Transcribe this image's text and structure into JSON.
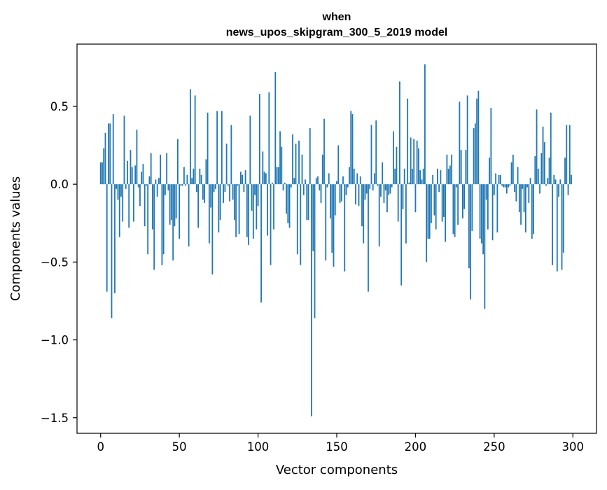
{
  "chart_data": {
    "type": "bar",
    "title_lines": [
      "when",
      "news_upos_skipgram_300_5_2019 model"
    ],
    "xlabel": "Vector components",
    "ylabel": "Components values",
    "xlim": [
      -15,
      315
    ],
    "ylim": [
      -1.6,
      0.9
    ],
    "xticks": [
      0,
      50,
      100,
      150,
      200,
      250,
      300
    ],
    "xtick_labels": [
      "0",
      "50",
      "100",
      "150",
      "200",
      "250",
      "300"
    ],
    "yticks": [
      -1.5,
      -1.0,
      -0.5,
      0.0,
      0.5
    ],
    "ytick_labels": [
      "−1.5",
      "−1.0",
      "−0.5",
      "0.0",
      "0.5"
    ],
    "grid": false,
    "bar_color": "#1f77b4",
    "x_start": 0,
    "values": [
      0.14,
      0.14,
      0.23,
      0.33,
      -0.69,
      0.39,
      0.39,
      -0.86,
      0.45,
      -0.7,
      -0.03,
      -0.1,
      -0.34,
      -0.08,
      -0.24,
      0.44,
      -0.03,
      0.15,
      -0.28,
      0.22,
      0.11,
      -0.24,
      0.12,
      0.35,
      -0.02,
      -0.14,
      0.08,
      0.13,
      -0.27,
      -0.01,
      -0.45,
      0.05,
      0.2,
      -0.29,
      -0.55,
      0.03,
      -0.08,
      0.04,
      0.19,
      -0.52,
      -0.45,
      -0.07,
      0.2,
      -0.04,
      -0.26,
      -0.23,
      -0.49,
      -0.27,
      -0.22,
      0.29,
      -0.35,
      -0.01,
      -0.01,
      0.11,
      -0.01,
      0.06,
      -0.4,
      0.61,
      0.04,
      0.1,
      0.57,
      -0.05,
      -0.28,
      0.1,
      0.06,
      -0.1,
      -0.12,
      0.16,
      0.46,
      -0.38,
      -0.15,
      -0.58,
      -0.05,
      -0.03,
      0.47,
      -0.31,
      -0.23,
      0.47,
      -0.12,
      -0.05,
      0.26,
      -0.01,
      -0.11,
      0.38,
      -0.1,
      -0.23,
      -0.34,
      -0.01,
      -0.32,
      0.08,
      0.06,
      -0.05,
      0.09,
      -0.34,
      -0.39,
      0.44,
      -0.17,
      -0.35,
      -0.07,
      -0.29,
      -0.14,
      0.58,
      -0.76,
      0.21,
      0.08,
      0.07,
      -0.33,
      0.59,
      -0.52,
      0.01,
      -0.29,
      0.72,
      0.11,
      0.11,
      0.34,
      0.24,
      -0.04,
      0.01,
      -0.19,
      -0.25,
      -0.28,
      -0.02,
      0.32,
      0.04,
      0.26,
      -0.45,
      0.28,
      -0.52,
      0.19,
      -0.07,
      0.03,
      -0.23,
      -0.23,
      0.36,
      -1.49,
      -0.43,
      -0.86,
      0.04,
      0.05,
      -0.04,
      -0.12,
      0.19,
      0.42,
      -0.49,
      -0.02,
      0.07,
      -0.22,
      -0.44,
      -0.53,
      -0.2,
      0.02,
      0.25,
      -0.12,
      -0.11,
      0.05,
      -0.56,
      -0.07,
      -0.02,
      0.11,
      0.47,
      0.45,
      0.1,
      -0.13,
      0.07,
      -0.14,
      0.05,
      -0.27,
      -0.38,
      -0.1,
      -0.06,
      -0.69,
      -0.03,
      0.38,
      -0.04,
      0.07,
      0.41,
      -0.01,
      -0.4,
      -0.08,
      0.14,
      -0.12,
      -0.04,
      -0.18,
      -0.07,
      -0.06,
      -0.02,
      0.34,
      0.1,
      0.24,
      -0.24,
      0.66,
      -0.65,
      -0.16,
      0.1,
      -0.38,
      0.55,
      0.01,
      0.3,
      0.1,
      0.29,
      -0.18,
      0.28,
      0.23,
      0.09,
      0.03,
      0.1,
      0.77,
      -0.5,
      -0.35,
      -0.35,
      -0.25,
      0.06,
      -0.2,
      -0.29,
      0.1,
      -0.05,
      0.09,
      -0.24,
      -0.21,
      -0.37,
      0.19,
      0.1,
      0.12,
      0.19,
      -0.32,
      -0.34,
      -0.02,
      -0.26,
      0.53,
      0.22,
      -0.22,
      -0.16,
      0.22,
      0.57,
      -0.54,
      -0.74,
      -0.3,
      0.36,
      0.39,
      0.55,
      0.6,
      -0.35,
      -0.38,
      -0.45,
      -0.8,
      -0.1,
      -0.29,
      0.17,
      0.49,
      -0.36,
      -0.07,
      0.07,
      -0.31,
      0.06,
      0.06,
      -0.01,
      -0.02,
      -0.02,
      -0.06,
      -0.02,
      -0.01,
      0.14,
      0.19,
      -0.05,
      -0.11,
      0.11,
      -0.18,
      -0.26,
      -0.03,
      -0.18,
      -0.31,
      -0.02,
      -0.12,
      0.04,
      -0.35,
      -0.32,
      0.18,
      0.48,
      0.1,
      -0.06,
      0.2,
      0.37,
      0.27,
      -0.01,
      0.04,
      0.17,
      0.46,
      -0.52,
      0.06,
      0.03,
      -0.56,
      -0.08,
      0.03,
      -0.55,
      -0.44,
      0.17,
      0.38,
      -0.07,
      0.38,
      0.06
    ]
  }
}
